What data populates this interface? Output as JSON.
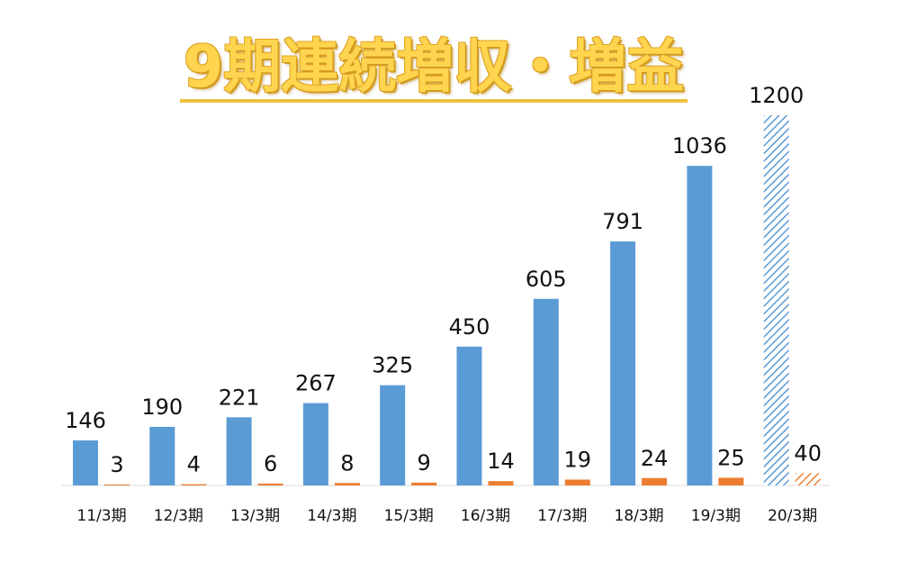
{
  "chart_data": {
    "type": "bar",
    "title": "9期連続増収・増益",
    "xlabel": "",
    "ylabel": "",
    "categories": [
      "11/3期",
      "12/3期",
      "13/3期",
      "14/3期",
      "15/3期",
      "16/3期",
      "17/3期",
      "18/3期",
      "19/3期",
      "20/3期"
    ],
    "series": [
      {
        "values": [
          146,
          190,
          221,
          267,
          325,
          450,
          605,
          791,
          1036,
          1200
        ],
        "color": "#5b9bd5",
        "value_labels": [
          "146",
          "190",
          "221",
          "267",
          "325",
          "450",
          "605",
          "791",
          "1036",
          "1200"
        ]
      },
      {
        "values": [
          3,
          4,
          6,
          8,
          9,
          14,
          19,
          24,
          25,
          40
        ],
        "color": "#ed7d31",
        "value_labels": [
          "3",
          "4",
          "6",
          "8",
          "9",
          "14",
          "19",
          "24",
          "25",
          "40"
        ]
      }
    ],
    "hatched_last_category": true,
    "grid": false,
    "legend": "none"
  }
}
